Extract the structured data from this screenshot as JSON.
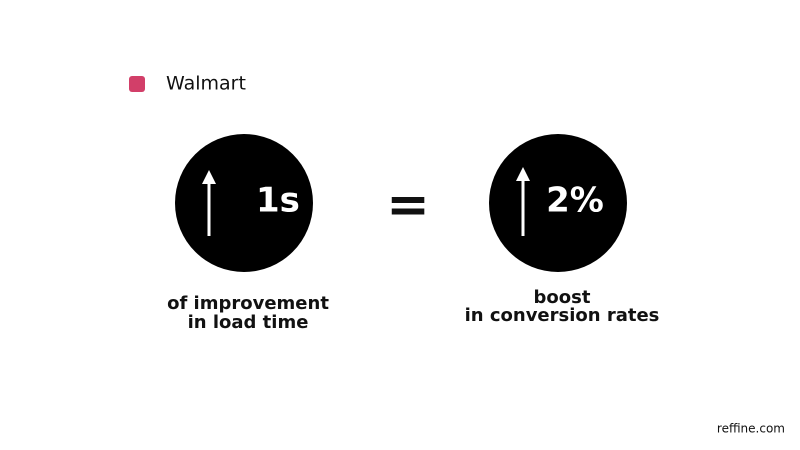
{
  "legend": {
    "label": "Walmart"
  },
  "items": [
    {
      "value": "1s",
      "caption": [
        "of improvement",
        "in load time"
      ]
    },
    {
      "value": "2%",
      "caption": [
        "boost",
        "in conversion rates"
      ]
    }
  ],
  "operator": "=",
  "footer": "reffine.com"
}
